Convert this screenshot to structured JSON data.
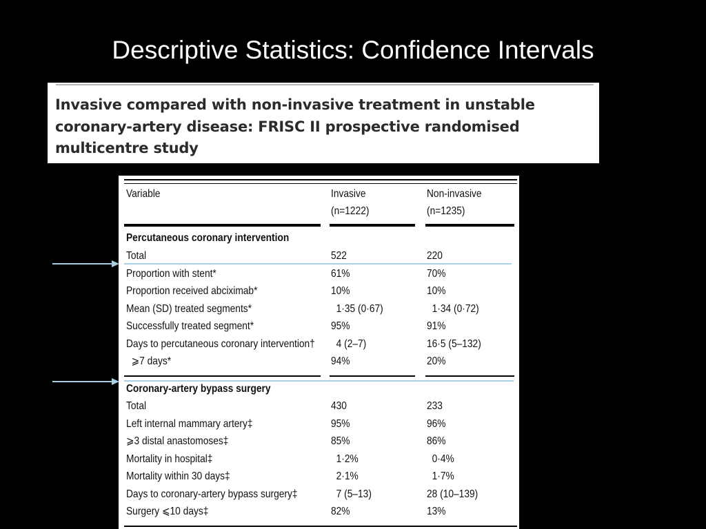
{
  "slide": {
    "title": "Descriptive Statistics: Confidence Intervals"
  },
  "caption": {
    "text": "Invasive compared with non-invasive treatment in unstable coronary-artery disease: FRISC II prospective randomised multicentre study"
  },
  "table": {
    "headers": {
      "variable": "Variable",
      "invasive_1": "Invasive",
      "invasive_2": "(n=1222)",
      "noninvasive_1": "Non-invasive",
      "noninvasive_2": "(n=1235)"
    },
    "rows": [
      {
        "variable": "Percutaneous coronary intervention",
        "invasive": "",
        "noninvasive": "",
        "section": true
      },
      {
        "variable": "Total",
        "invasive": "522",
        "noninvasive": "220"
      },
      {
        "variable": "Proportion with stent*",
        "invasive": "61%",
        "noninvasive": "70%"
      },
      {
        "variable": "Proportion received abciximab*",
        "invasive": "10%",
        "noninvasive": "10%"
      },
      {
        "variable": "Mean (SD) treated segments*",
        "invasive": "  1·35 (0·67)",
        "noninvasive": "  1·34 (0·72)"
      },
      {
        "variable": "Successfully treated segment*",
        "invasive": "95%",
        "noninvasive": "91%"
      },
      {
        "variable": "Days to percutaneous coronary intervention†",
        "invasive": "  4 (2–7)",
        "noninvasive": "16·5 (5–132)"
      },
      {
        "variable": "  ⩾7 days*",
        "invasive": "94%",
        "noninvasive": "20%"
      },
      {
        "variable": "Coronary-artery bypass surgery",
        "invasive": "",
        "noninvasive": "",
        "section": true
      },
      {
        "variable": "Total",
        "invasive": "430",
        "noninvasive": "233"
      },
      {
        "variable": "Left internal mammary artery‡",
        "invasive": "95%",
        "noninvasive": "96%"
      },
      {
        "variable": "⩾3 distal anastomoses‡",
        "invasive": "85%",
        "noninvasive": "86%"
      },
      {
        "variable": "Mortality in hospital‡",
        "invasive": "  1·2%",
        "noninvasive": "  0·4%"
      },
      {
        "variable": "Mortality within 30 days‡",
        "invasive": "  2·1%",
        "noninvasive": "  1·7%"
      },
      {
        "variable": "Days to coronary-artery bypass surgery‡",
        "invasive": "  7 (5–13)",
        "noninvasive": "28 (10–139)"
      },
      {
        "variable": "Surgery ⩽10 days‡",
        "invasive": "82%",
        "noninvasive": "13%"
      }
    ]
  },
  "colors": {
    "background": "#000000",
    "highlight": "#a9cfe3"
  }
}
